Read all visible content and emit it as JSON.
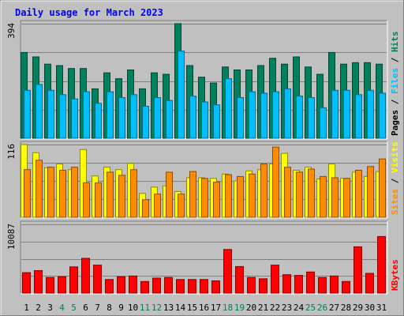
{
  "chart_data": {
    "type": "bar",
    "title": "Daily usage for March 2023",
    "categories": [
      "1",
      "2",
      "3",
      "4",
      "5",
      "6",
      "7",
      "8",
      "9",
      "10",
      "11",
      "12",
      "13",
      "14",
      "15",
      "16",
      "17",
      "18",
      "19",
      "20",
      "21",
      "22",
      "23",
      "24",
      "25",
      "26",
      "27",
      "28",
      "29",
      "30",
      "31"
    ],
    "weekend_days": [
      "4",
      "5",
      "11",
      "12",
      "18",
      "19",
      "25",
      "26"
    ],
    "panels": [
      {
        "name": "hits-files-pages",
        "ylabel_parts": [
          "Pages",
          "Files",
          "Hits"
        ],
        "y_tick_label": "394",
        "ylim": [
          0,
          394
        ],
        "series": [
          {
            "name": "Hits",
            "color": "#00805c",
            "values": [
              295,
              280,
              255,
              250,
              240,
              240,
              170,
              225,
              205,
              235,
              170,
              225,
              220,
              394,
              250,
              210,
              190,
              245,
              235,
              235,
              250,
              275,
              255,
              280,
              245,
              220,
              295,
              255,
              260,
              260,
              255
            ]
          },
          {
            "name": "Files",
            "color": "#00bfff",
            "values": [
              165,
              185,
              165,
              150,
              135,
              160,
              120,
              160,
              140,
              150,
              110,
              140,
              130,
              300,
              145,
              125,
              115,
              205,
              140,
              160,
              155,
              160,
              170,
              145,
              140,
              105,
              165,
              165,
              150,
              165,
              155
            ]
          }
        ]
      },
      {
        "name": "sites-visits",
        "ylabel_parts": [
          "Sites",
          "Visits"
        ],
        "y_tick_label": "116",
        "ylim": [
          0,
          116
        ],
        "series": [
          {
            "name": "Visits",
            "color": "#ffff00",
            "values": [
              116,
              103,
              79,
              85,
              76,
              108,
              66,
              80,
              76,
              86,
              38,
              48,
              50,
              41,
              63,
              63,
              62,
              69,
              58,
              74,
              76,
              85,
              102,
              75,
              80,
              61,
              85,
              62,
              72,
              65,
              73
            ]
          },
          {
            "name": "Sites",
            "color": "#ff8c00",
            "values": [
              76,
              91,
              80,
              75,
              80,
              55,
              55,
              72,
              67,
              76,
              28,
              37,
              72,
              37,
              73,
              62,
              56,
              68,
              65,
              69,
              85,
              112,
              80,
              72,
              77,
              65,
              63,
              62,
              75,
              81,
              93
            ]
          }
        ]
      },
      {
        "name": "kbytes",
        "ylabel_parts": [
          "KBytes"
        ],
        "y_tick_label": "10087",
        "ylim": [
          0,
          10087
        ],
        "series": [
          {
            "name": "KBytes",
            "color": "#ff0000",
            "values": [
              3000,
              3300,
              2300,
              2400,
              3850,
              5100,
              4100,
              2000,
              2400,
              2500,
              1700,
              2200,
              2300,
              2000,
              2000,
              2000,
              1800,
              6400,
              3900,
              2300,
              2100,
              4100,
              2700,
              2600,
              3100,
              2300,
              2500,
              1700,
              6800,
              2900,
              8300
            ]
          }
        ]
      }
    ]
  },
  "colors": {
    "background": "#c0c0c0",
    "plot_background": "#c0c0c0",
    "title": "#0000ff",
    "gridline": "#808080",
    "weekday_label": "#000000",
    "weekend_label": "#008060"
  }
}
